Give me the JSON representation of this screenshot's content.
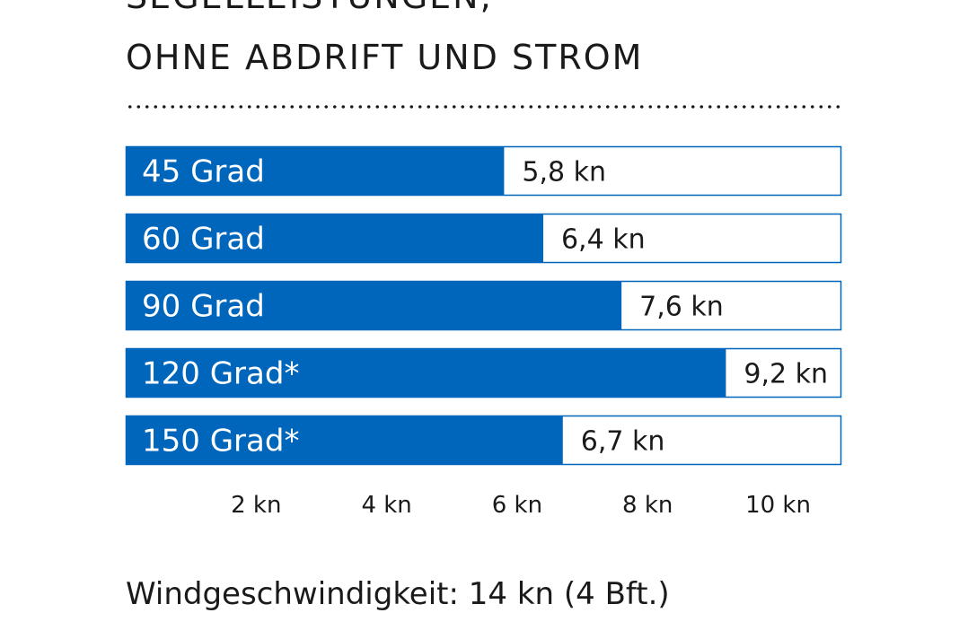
{
  "header": {
    "title_cut": "SEGELLEISTUNGEN,",
    "title": "OHNE ABDRIFT UND STROM"
  },
  "footer": {
    "wind_note": "Windgeschwindigkeit: 14 kn (4 Bft.)"
  },
  "chart_data": {
    "type": "bar",
    "orientation": "horizontal",
    "title": "SEGELLEISTUNGEN, OHNE ABDRIFT UND STROM",
    "categories": [
      "45 Grad",
      "60 Grad",
      "90 Grad",
      "120 Grad*",
      "150 Grad*"
    ],
    "values": [
      5.8,
      6.4,
      7.6,
      9.2,
      6.7
    ],
    "value_labels": [
      "5,8 kn",
      "6,4 kn",
      "7,6 kn",
      "9,2 kn",
      "6,7 kn"
    ],
    "x_ticks": [
      2,
      4,
      6,
      8,
      10
    ],
    "x_tick_labels": [
      "2 kn",
      "4 kn",
      "6 kn",
      "8 kn",
      "10 kn"
    ],
    "xlim": [
      0,
      10.97
    ],
    "grid": false,
    "colors": {
      "bar": "#0066bb",
      "track_border": "#0066bb",
      "text_on_bar": "#ffffff",
      "text": "#1a1a1a"
    }
  }
}
